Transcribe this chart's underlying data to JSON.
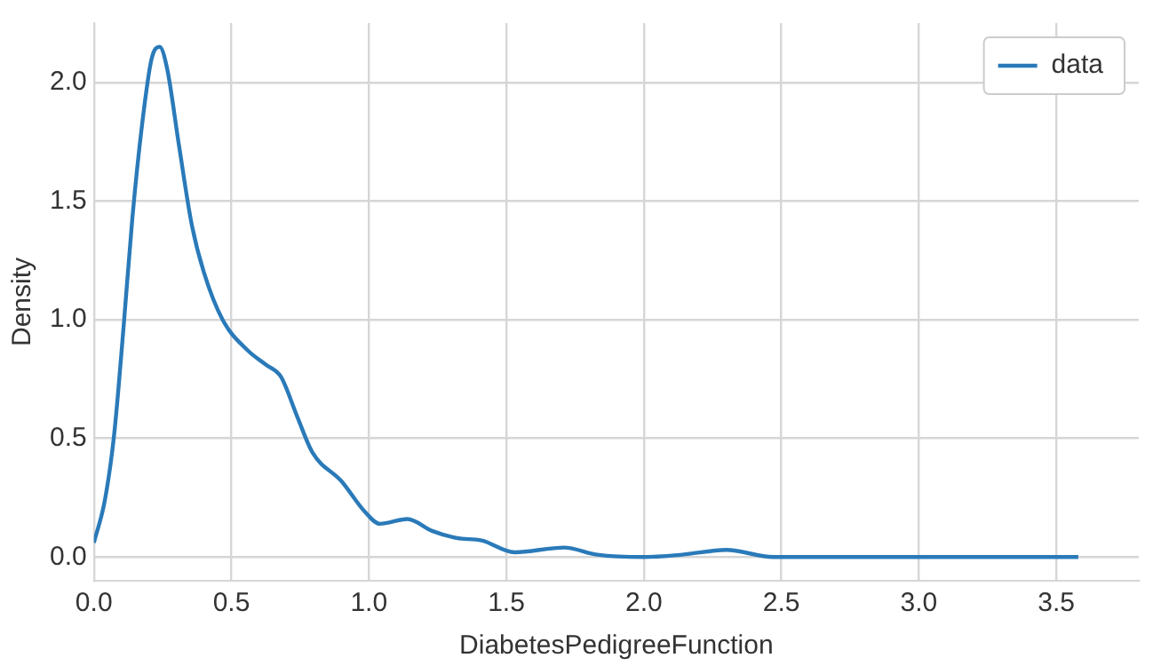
{
  "chart_data": {
    "type": "line",
    "xlabel": "DiabetesPedigreeFunction",
    "ylabel": "Density",
    "series": [
      {
        "name": "data",
        "color": "#2a7ab9",
        "x": [
          0,
          0.04,
          0.074,
          0.108,
          0.14,
          0.176,
          0.21,
          0.239,
          0.266,
          0.31,
          0.356,
          0.4,
          0.468,
          0.56,
          0.626,
          0.68,
          0.74,
          0.795,
          0.9,
          0.986,
          1.04,
          1.14,
          1.23,
          1.32,
          1.41,
          1.53,
          1.71,
          1.83,
          2.0,
          2.14,
          2.3,
          2.47,
          2.8,
          3.2,
          3.58
        ],
        "values": [
          0.06,
          0.24,
          0.52,
          0.97,
          1.43,
          1.83,
          2.1,
          2.15,
          2.06,
          1.73,
          1.4,
          1.2,
          1.0,
          0.87,
          0.81,
          0.76,
          0.59,
          0.44,
          0.32,
          0.19,
          0.14,
          0.16,
          0.11,
          0.08,
          0.07,
          0.02,
          0.04,
          0.01,
          0,
          0.01,
          0.03,
          0,
          0,
          0,
          0
        ]
      }
    ],
    "xlim": [
      0,
      3.8
    ],
    "xticks": [
      {
        "value": 0,
        "label": "0.0"
      },
      {
        "value": 0.5,
        "label": "0.5"
      },
      {
        "value": 1,
        "label": "1.0"
      },
      {
        "value": 1.5,
        "label": "1.5"
      },
      {
        "value": 2,
        "label": "2.0"
      },
      {
        "value": 2.5,
        "label": "2.5"
      },
      {
        "value": 3,
        "label": "3.0"
      },
      {
        "value": 3.5,
        "label": "3.5"
      }
    ],
    "ylim": [
      -0.1,
      2.25
    ],
    "yticks": [
      {
        "value": 0,
        "label": "0.0"
      },
      {
        "value": 0.5,
        "label": "0.5"
      },
      {
        "value": 1,
        "label": "1.0"
      },
      {
        "value": 1.5,
        "label": "1.5"
      },
      {
        "value": 2,
        "label": "2.0"
      }
    ],
    "grid": true,
    "legend": "top right",
    "marker": "none",
    "line_style": "solid"
  }
}
